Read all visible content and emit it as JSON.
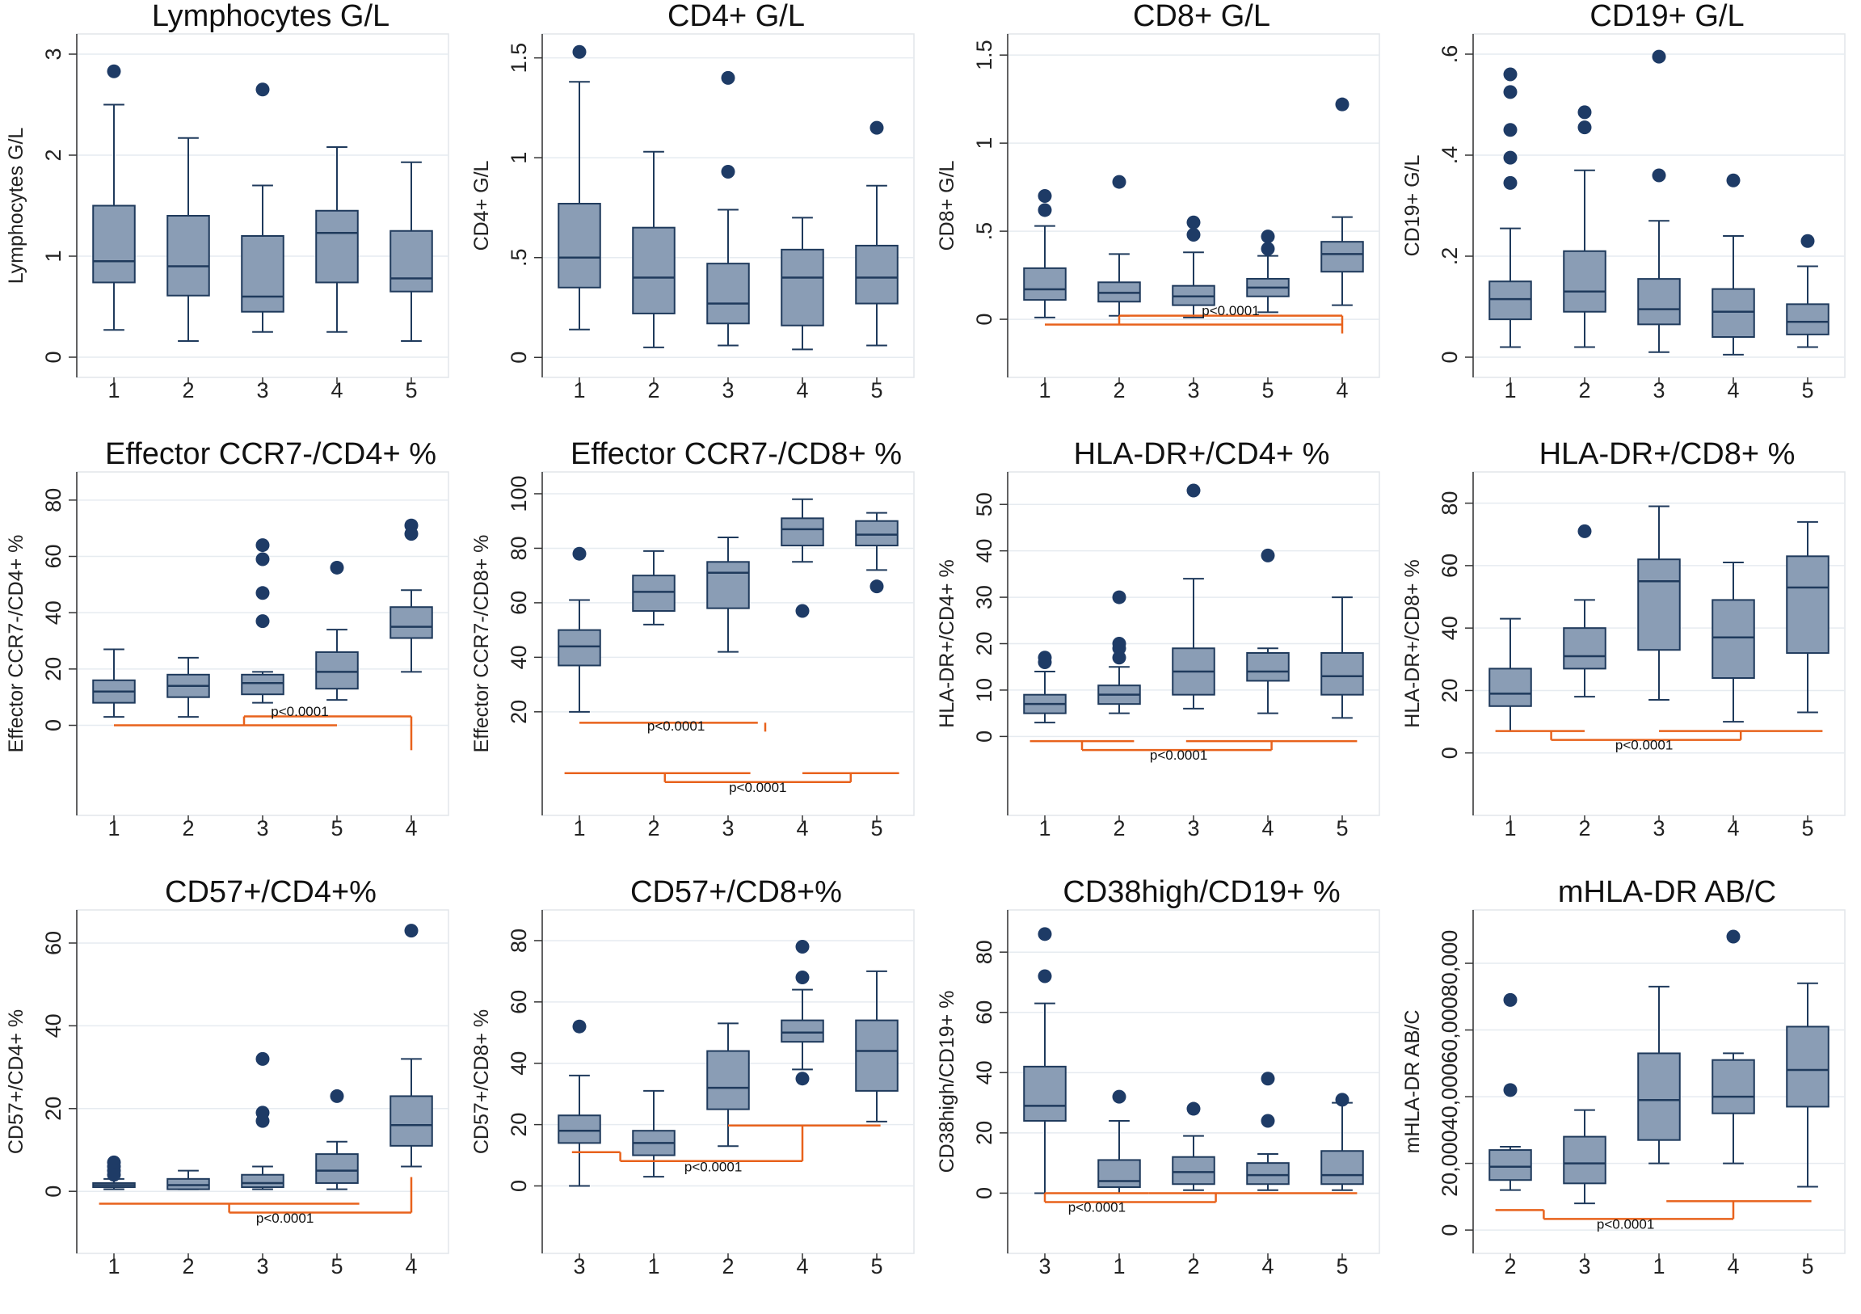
{
  "colors": {
    "box": "#8a9db5",
    "outline": "#1f3a5c",
    "outlier": "#1e3b66",
    "bracket": "#e8621c",
    "grid": "#e6ebf0",
    "plot_border": "#e2e6ea"
  },
  "chart_data": [
    {
      "type": "box",
      "title": "Lymphocytes G/L",
      "ylabel": "Lymphocytes G/L",
      "ylim": [
        -0.2,
        3.2
      ],
      "yticks": [
        "0",
        "1",
        "2",
        "3"
      ],
      "ytick_values": [
        0,
        1,
        2,
        3
      ],
      "categories": [
        "1",
        "2",
        "3",
        "4",
        "5"
      ],
      "boxes": [
        {
          "min": 0.27,
          "q1": 0.74,
          "median": 0.95,
          "q3": 1.5,
          "max": 2.5,
          "outliers": [
            2.83
          ]
        },
        {
          "min": 0.16,
          "q1": 0.61,
          "median": 0.9,
          "q3": 1.4,
          "max": 2.17,
          "outliers": []
        },
        {
          "min": 0.25,
          "q1": 0.45,
          "median": 0.6,
          "q3": 1.2,
          "max": 1.7,
          "outliers": [
            2.65
          ]
        },
        {
          "min": 0.25,
          "q1": 0.74,
          "median": 1.23,
          "q3": 1.45,
          "max": 2.08,
          "outliers": []
        },
        {
          "min": 0.16,
          "q1": 0.65,
          "median": 0.78,
          "q3": 1.25,
          "max": 1.93,
          "outliers": []
        }
      ],
      "brackets": []
    },
    {
      "type": "box",
      "title": "CD4+ G/L",
      "ylabel": "CD4+ G/L",
      "ylim": [
        -0.1,
        1.62
      ],
      "yticks": [
        "0",
        ".5",
        "1",
        "1.5"
      ],
      "ytick_values": [
        0,
        0.5,
        1,
        1.5
      ],
      "categories": [
        "1",
        "2",
        "3",
        "4",
        "5"
      ],
      "boxes": [
        {
          "min": 0.14,
          "q1": 0.35,
          "median": 0.5,
          "q3": 0.77,
          "max": 1.38,
          "outliers": [
            1.53
          ]
        },
        {
          "min": 0.05,
          "q1": 0.22,
          "median": 0.4,
          "q3": 0.65,
          "max": 1.03,
          "outliers": []
        },
        {
          "min": 0.06,
          "q1": 0.17,
          "median": 0.27,
          "q3": 0.47,
          "max": 0.74,
          "outliers": [
            1.4,
            0.93
          ]
        },
        {
          "min": 0.04,
          "q1": 0.16,
          "median": 0.4,
          "q3": 0.54,
          "max": 0.7,
          "outliers": []
        },
        {
          "min": 0.06,
          "q1": 0.27,
          "median": 0.4,
          "q3": 0.56,
          "max": 0.86,
          "outliers": [
            1.15
          ]
        }
      ],
      "brackets": []
    },
    {
      "type": "box",
      "title": "CD8+ G/L",
      "ylabel": "CD8+ G/L",
      "ylim": [
        -0.33,
        1.62
      ],
      "yticks": [
        "0",
        ".5",
        "1",
        "1.5"
      ],
      "ytick_values": [
        0,
        0.5,
        1,
        1.5
      ],
      "categories": [
        "1",
        "2",
        "3",
        "5",
        "4"
      ],
      "boxes": [
        {
          "min": 0.01,
          "q1": 0.11,
          "median": 0.17,
          "q3": 0.29,
          "max": 0.53,
          "outliers": [
            0.7,
            0.62
          ]
        },
        {
          "min": 0.02,
          "q1": 0.1,
          "median": 0.15,
          "q3": 0.21,
          "max": 0.37,
          "outliers": [
            0.78
          ]
        },
        {
          "min": 0.01,
          "q1": 0.08,
          "median": 0.13,
          "q3": 0.19,
          "max": 0.38,
          "outliers": [
            0.55,
            0.48
          ]
        },
        {
          "min": 0.04,
          "q1": 0.13,
          "median": 0.18,
          "q3": 0.23,
          "max": 0.36,
          "outliers": [
            0.47,
            0.4
          ]
        },
        {
          "min": 0.08,
          "q1": 0.27,
          "median": 0.37,
          "q3": 0.44,
          "max": 0.58,
          "outliers": [
            1.22
          ]
        }
      ],
      "brackets": [
        {
          "label": "p<0.0001",
          "groups": [
            1,
            4
          ],
          "y_data": -0.03,
          "y_join": -0.15
        }
      ]
    },
    {
      "type": "box",
      "title": "CD19+ G/L",
      "ylabel": "CD19+ G/L",
      "ylim": [
        -0.04,
        0.64
      ],
      "yticks": [
        "0",
        ".2",
        ".4",
        ".6"
      ],
      "ytick_values": [
        0,
        0.2,
        0.4,
        0.6
      ],
      "categories": [
        "1",
        "2",
        "3",
        "4",
        "5"
      ],
      "boxes": [
        {
          "min": 0.02,
          "q1": 0.075,
          "median": 0.115,
          "q3": 0.15,
          "max": 0.255,
          "outliers": [
            0.56,
            0.525,
            0.45,
            0.395,
            0.345
          ]
        },
        {
          "min": 0.02,
          "q1": 0.09,
          "median": 0.13,
          "q3": 0.21,
          "max": 0.37,
          "outliers": [
            0.485,
            0.455
          ]
        },
        {
          "min": 0.01,
          "q1": 0.065,
          "median": 0.095,
          "q3": 0.155,
          "max": 0.27,
          "outliers": [
            0.595,
            0.36
          ]
        },
        {
          "min": 0.005,
          "q1": 0.04,
          "median": 0.09,
          "q3": 0.135,
          "max": 0.24,
          "outliers": [
            0.35
          ]
        },
        {
          "min": 0.02,
          "q1": 0.045,
          "median": 0.07,
          "q3": 0.105,
          "max": 0.18,
          "outliers": [
            0.23
          ]
        }
      ],
      "brackets": []
    },
    {
      "type": "box",
      "title": "Effector CCR7-/CD4+ %",
      "ylabel": "Effector CCR7-/CD4+ %",
      "ylim": [
        -32,
        90
      ],
      "yticks": [
        "0",
        "20",
        "40",
        "60",
        "80"
      ],
      "ytick_values": [
        0,
        20,
        40,
        60,
        80
      ],
      "categories": [
        "1",
        "2",
        "3",
        "5",
        "4"
      ],
      "boxes": [
        {
          "min": 3,
          "q1": 8,
          "median": 12,
          "q3": 16,
          "max": 27,
          "outliers": []
        },
        {
          "min": 3,
          "q1": 10,
          "median": 14,
          "q3": 18,
          "max": 24,
          "outliers": []
        },
        {
          "min": 8,
          "q1": 11,
          "median": 15,
          "q3": 18,
          "max": 19,
          "outliers": [
            64,
            59,
            47,
            37
          ]
        },
        {
          "min": 9,
          "q1": 13,
          "median": 19,
          "q3": 26,
          "max": 34,
          "outliers": [
            56
          ]
        },
        {
          "min": 19,
          "q1": 31,
          "median": 35,
          "q3": 42,
          "max": 48,
          "outliers": [
            71,
            68
          ]
        }
      ],
      "brackets": [
        {
          "label": "p<0.0001",
          "groups": [
            1,
            4
          ],
          "y_data": 0,
          "y_join": -8
        }
      ]
    },
    {
      "type": "box",
      "title": "Effector CCR7-/CD8+ %",
      "ylabel": "Effector CCR7-/CD8+ %",
      "ylim": [
        -18,
        108
      ],
      "yticks": [
        "20",
        "40",
        "60",
        "80",
        "100"
      ],
      "ytick_values": [
        20,
        40,
        60,
        80,
        100
      ],
      "categories": [
        "1",
        "2",
        "3",
        "4",
        "5"
      ],
      "boxes": [
        {
          "min": 20,
          "q1": 37,
          "median": 44,
          "q3": 50,
          "max": 61,
          "outliers": [
            78
          ]
        },
        {
          "min": 52,
          "q1": 57,
          "median": 64,
          "q3": 70,
          "max": 79,
          "outliers": []
        },
        {
          "min": 42,
          "q1": 58,
          "median": 71,
          "q3": 75,
          "max": 84,
          "outliers": []
        },
        {
          "min": 75,
          "q1": 81,
          "median": 87,
          "q3": 91,
          "max": 98,
          "outliers": [
            57
          ]
        },
        {
          "min": 72,
          "q1": 81,
          "median": 85,
          "q3": 90,
          "max": 93,
          "outliers": [
            66
          ]
        }
      ],
      "brackets": [
        {
          "label": "p<0.0001",
          "groups": [
            1,
            2
          ],
          "y_data": 16,
          "y_join": 40
        },
        {
          "label": "p<0.0001",
          "groups": [
            1,
            2,
            3,
            4,
            5
          ],
          "y_data": 4,
          "y_join": 1
        }
      ]
    },
    {
      "type": "box",
      "title": "HLA-DR+/CD4+ %",
      "ylabel": "HLA-DR+/CD4+ %",
      "ylim": [
        -17,
        57
      ],
      "yticks": [
        "0",
        "10",
        "20",
        "30",
        "40",
        "50"
      ],
      "ytick_values": [
        0,
        10,
        20,
        30,
        40,
        50
      ],
      "categories": [
        "1",
        "2",
        "3",
        "4",
        "5"
      ],
      "boxes": [
        {
          "min": 3,
          "q1": 5,
          "median": 7,
          "q3": 9,
          "max": 14,
          "outliers": [
            17,
            16
          ]
        },
        {
          "min": 5,
          "q1": 7,
          "median": 9,
          "q3": 11,
          "max": 15,
          "outliers": [
            30,
            20,
            19,
            17
          ]
        },
        {
          "min": 6,
          "q1": 9,
          "median": 14,
          "q3": 19,
          "max": 34,
          "outliers": [
            53
          ]
        },
        {
          "min": 5,
          "q1": 12,
          "median": 14,
          "q3": 18,
          "max": 19,
          "outliers": [
            39
          ]
        },
        {
          "min": 4,
          "q1": 9,
          "median": 13,
          "q3": 18,
          "max": 30,
          "outliers": []
        }
      ],
      "brackets": [
        {
          "label": "p<0.0001",
          "groups": [
            1,
            2,
            3,
            4,
            5
          ],
          "y_data": -1,
          "y_join": -5
        }
      ]
    },
    {
      "type": "box",
      "title": "HLA-DR+/CD8+ %",
      "ylabel": "HLA-DR+/CD8+ %",
      "ylim": [
        -20,
        90
      ],
      "yticks": [
        "0",
        "20",
        "40",
        "60",
        "80"
      ],
      "ytick_values": [
        0,
        20,
        40,
        60,
        80
      ],
      "categories": [
        "1",
        "2",
        "3",
        "4",
        "5"
      ],
      "boxes": [
        {
          "min": 7,
          "q1": 15,
          "median": 19,
          "q3": 27,
          "max": 43,
          "outliers": []
        },
        {
          "min": 18,
          "q1": 27,
          "median": 31,
          "q3": 40,
          "max": 49,
          "outliers": [
            71
          ]
        },
        {
          "min": 17,
          "q1": 33,
          "median": 55,
          "q3": 62,
          "max": 79,
          "outliers": []
        },
        {
          "min": 10,
          "q1": 24,
          "median": 37,
          "q3": 49,
          "max": 61,
          "outliers": []
        },
        {
          "min": 13,
          "q1": 32,
          "median": 53,
          "q3": 63,
          "max": 74,
          "outliers": []
        }
      ],
      "brackets": [
        {
          "label": "p<0.0001",
          "groups": [
            1,
            2,
            3,
            4,
            5
          ],
          "y_data": 7,
          "y_join": -3
        }
      ]
    },
    {
      "type": "box",
      "title": "CD57+/CD4+%",
      "ylabel": "CD57+/CD4+ %",
      "ylim": [
        -15,
        68
      ],
      "yticks": [
        "0",
        "20",
        "40",
        "60"
      ],
      "ytick_values": [
        0,
        20,
        40,
        60
      ],
      "categories": [
        "1",
        "2",
        "3",
        "5",
        "4"
      ],
      "boxes": [
        {
          "min": 0.5,
          "q1": 1,
          "median": 1.5,
          "q3": 2,
          "max": 3,
          "outliers": [
            7,
            6,
            5,
            4
          ]
        },
        {
          "min": 0.5,
          "q1": 0.5,
          "median": 1.5,
          "q3": 3,
          "max": 5,
          "outliers": []
        },
        {
          "min": 0.5,
          "q1": 1,
          "median": 2,
          "q3": 4,
          "max": 6,
          "outliers": [
            32,
            19,
            17
          ]
        },
        {
          "min": 0.5,
          "q1": 2,
          "median": 5,
          "q3": 9,
          "max": 12,
          "outliers": [
            23
          ]
        },
        {
          "min": 6,
          "q1": 11,
          "median": 16,
          "q3": 23,
          "max": 32,
          "outliers": [
            63
          ]
        }
      ],
      "brackets": [
        {
          "label": "p<0.0001",
          "groups": [
            1,
            4
          ],
          "y_data": -3,
          "y_join": -8
        }
      ]
    },
    {
      "type": "box",
      "title": "CD57+/CD8+%",
      "ylabel": "CD57+/CD8+ %",
      "ylim": [
        -22,
        90
      ],
      "yticks": [
        "0",
        "20",
        "40",
        "60",
        "80"
      ],
      "ytick_values": [
        0,
        20,
        40,
        60,
        80
      ],
      "categories": [
        "3",
        "1",
        "2",
        "4",
        "5"
      ],
      "boxes": [
        {
          "min": 0,
          "q1": 14,
          "median": 18,
          "q3": 23,
          "max": 36,
          "outliers": [
            52
          ]
        },
        {
          "min": 3,
          "q1": 10,
          "median": 14,
          "q3": 18,
          "max": 31,
          "outliers": []
        },
        {
          "min": 13,
          "q1": 25,
          "median": 32,
          "q3": 44,
          "max": 53,
          "outliers": []
        },
        {
          "min": 38,
          "q1": 47,
          "median": 50,
          "q3": 54,
          "max": 64,
          "outliers": [
            78,
            68,
            35
          ]
        },
        {
          "min": 21,
          "q1": 31,
          "median": 44,
          "q3": 54,
          "max": 70,
          "outliers": []
        }
      ],
      "brackets": [
        {
          "label": "p<0.0001",
          "groups": [
            1,
            2,
            3,
            4,
            5
          ],
          "y_data": 11,
          "y_join": -8
        }
      ]
    },
    {
      "type": "box",
      "title": "CD38high/CD19+ %",
      "ylabel": "CD38high/CD19+ %",
      "ylim": [
        -20,
        94
      ],
      "yticks": [
        "0",
        "20",
        "40",
        "60",
        "80"
      ],
      "ytick_values": [
        0,
        20,
        40,
        60,
        80
      ],
      "categories": [
        "3",
        "1",
        "2",
        "4",
        "5"
      ],
      "boxes": [
        {
          "min": 0,
          "q1": 24,
          "median": 29,
          "q3": 42,
          "max": 63,
          "outliers": [
            86,
            72
          ]
        },
        {
          "min": 0,
          "q1": 2,
          "median": 4,
          "q3": 11,
          "max": 24,
          "outliers": [
            32
          ]
        },
        {
          "min": 1,
          "q1": 3,
          "median": 7,
          "q3": 12,
          "max": 19,
          "outliers": [
            28
          ]
        },
        {
          "min": 1,
          "q1": 3,
          "median": 6,
          "q3": 10,
          "max": 13,
          "outliers": [
            38,
            24
          ]
        },
        {
          "min": 1,
          "q1": 3,
          "median": 6,
          "q3": 14,
          "max": 30,
          "outliers": [
            31
          ]
        }
      ],
      "brackets": [
        {
          "label": "p<0.0001",
          "groups": [
            1,
            2,
            3,
            4,
            5
          ],
          "y_data": 0,
          "y_join": -10
        }
      ]
    },
    {
      "type": "box",
      "title": "mHLA-DR AB/C",
      "ylabel": "mHLA-DR AB/C",
      "ylim": [
        -7000,
        96000
      ],
      "yticks": [
        "0",
        "20,000",
        "40,000",
        "60,000",
        "80,000"
      ],
      "ytick_values": [
        0,
        20000,
        40000,
        60000,
        80000
      ],
      "categories": [
        "2",
        "3",
        "1",
        "4",
        "5"
      ],
      "boxes": [
        {
          "min": 12000,
          "q1": 15000,
          "median": 19000,
          "q3": 24000,
          "max": 25000,
          "outliers": [
            69000,
            42000
          ]
        },
        {
          "min": 8000,
          "q1": 14000,
          "median": 20000,
          "q3": 28000,
          "max": 36000,
          "outliers": []
        },
        {
          "min": 20000,
          "q1": 27000,
          "median": 39000,
          "q3": 53000,
          "max": 73000,
          "outliers": []
        },
        {
          "min": 20000,
          "q1": 35000,
          "median": 40000,
          "q3": 51000,
          "max": 53000,
          "outliers": [
            88000
          ]
        },
        {
          "min": 13000,
          "q1": 37000,
          "median": 48000,
          "q3": 61000,
          "max": 74000,
          "outliers": []
        }
      ],
      "brackets": [
        {
          "label": "p<0.0001",
          "groups": [
            1,
            2,
            3,
            4,
            5
          ],
          "y_data": 6000,
          "y_join": -1000
        }
      ]
    }
  ]
}
